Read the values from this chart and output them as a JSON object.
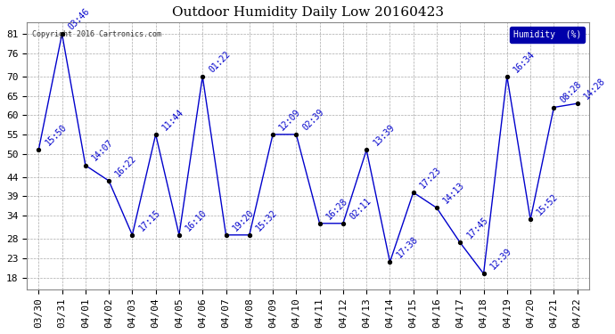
{
  "title": "Outdoor Humidity Daily Low 20160423",
  "copyright_text": "Copyright 2016 Cartronics.com",
  "legend_label": "Humidity  (%)",
  "x_labels": [
    "03/30",
    "03/31",
    "04/01",
    "04/02",
    "04/03",
    "04/04",
    "04/05",
    "04/06",
    "04/07",
    "04/08",
    "04/09",
    "04/10",
    "04/11",
    "04/12",
    "04/13",
    "04/14",
    "04/15",
    "04/16",
    "04/17",
    "04/18",
    "04/19",
    "04/20",
    "04/21",
    "04/22"
  ],
  "y_values": [
    51,
    81,
    47,
    43,
    29,
    55,
    29,
    70,
    29,
    29,
    55,
    55,
    32,
    32,
    51,
    22,
    40,
    36,
    27,
    19,
    70,
    33,
    62,
    63
  ],
  "point_labels": [
    "15:50",
    "03:46",
    "14:07",
    "16:22",
    "17:15",
    "11:44",
    "16:10",
    "01:22",
    "19:20",
    "15:32",
    "12:09",
    "02:39",
    "16:28",
    "02:11",
    "13:39",
    "17:38",
    "17:23",
    "14:13",
    "17:45",
    "12:39",
    "16:34",
    "15:52",
    "08:28",
    "14:28"
  ],
  "ylim": [
    15,
    84
  ],
  "yticks": [
    18,
    23,
    28,
    34,
    39,
    44,
    50,
    55,
    60,
    65,
    70,
    76,
    81
  ],
  "line_color": "#0000cc",
  "marker_color": "#000000",
  "bg_color": "#ffffff",
  "grid_color": "#aaaaaa",
  "label_fontsize": 7,
  "title_fontsize": 11,
  "tick_fontsize": 8,
  "legend_bg": "#0000aa",
  "legend_fg": "#ffffff"
}
